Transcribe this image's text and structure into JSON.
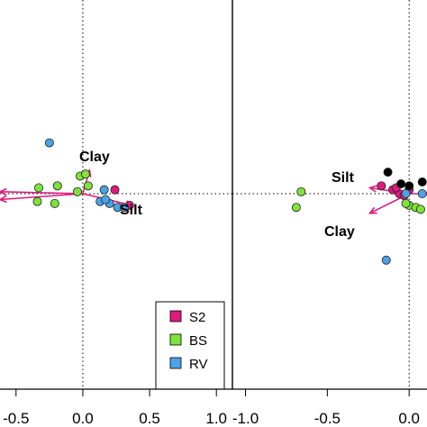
{
  "chart_data": [
    {
      "type": "scatter",
      "panel": "left",
      "title": "",
      "xlabel": "",
      "ylabel": "",
      "xlim": [
        -0.62,
        1.12
      ],
      "ylim": [
        -1.0,
        1.0
      ],
      "xticks": [
        -0.5,
        0.0,
        0.5,
        1.0
      ],
      "xtick_labels": [
        "-0.5",
        "0.0",
        "0.5",
        "1.0"
      ],
      "reference_lines": {
        "x": 0,
        "y": 0,
        "style": "dotted"
      },
      "series": [
        {
          "name": "S2",
          "color": "#e0197d",
          "points": [
            {
              "x": 0.24,
              "y": 0.02
            },
            {
              "x": 0.35,
              "y": -0.06
            }
          ]
        },
        {
          "name": "BS",
          "color": "#7ee23a",
          "points": [
            {
              "x": -0.33,
              "y": 0.03
            },
            {
              "x": -0.34,
              "y": -0.04
            },
            {
              "x": -0.21,
              "y": -0.05
            },
            {
              "x": -0.04,
              "y": 0.01
            },
            {
              "x": -0.02,
              "y": 0.09
            },
            {
              "x": 0.02,
              "y": 0.1
            },
            {
              "x": 0.04,
              "y": 0.04
            },
            {
              "x": -0.19,
              "y": 0.04
            }
          ]
        },
        {
          "name": "RV",
          "color": "#4aa3e8",
          "points": [
            {
              "x": -0.25,
              "y": 0.26
            },
            {
              "x": 0.16,
              "y": 0.02
            },
            {
              "x": 0.13,
              "y": -0.04
            },
            {
              "x": 0.2,
              "y": -0.05
            },
            {
              "x": 0.26,
              "y": -0.07
            },
            {
              "x": 0.31,
              "y": -0.07
            },
            {
              "x": 0.17,
              "y": -0.03
            }
          ]
        }
      ],
      "vectors": [
        {
          "label": "Clay",
          "x": 0.05,
          "y": 0.12
        },
        {
          "label": "Silt",
          "x": 0.37,
          "y": -0.06
        },
        {
          "label": "",
          "x": -0.62,
          "y": 0.01
        },
        {
          "label": "",
          "x": -0.62,
          "y": -0.03
        }
      ],
      "legend": {
        "placement": "bottom-right",
        "entries": [
          {
            "label": "S2",
            "color": "#e0197d"
          },
          {
            "label": "BS",
            "color": "#7ee23a"
          },
          {
            "label": "RV",
            "color": "#4aa3e8"
          }
        ]
      }
    },
    {
      "type": "scatter",
      "panel": "right",
      "title": "",
      "xlabel": "",
      "ylabel": "",
      "xlim": [
        -1.08,
        0.12
      ],
      "ylim": [
        -1.0,
        1.0
      ],
      "xticks": [
        -1.0,
        -0.5,
        0.0
      ],
      "xtick_labels": [
        "-1.0",
        "-0.5",
        "0.0"
      ],
      "reference_lines": {
        "x": 0,
        "y": 0,
        "style": "dotted"
      },
      "series": [
        {
          "name": "S2",
          "color": "#e0197d",
          "points": [
            {
              "x": -0.17,
              "y": 0.04
            },
            {
              "x": -0.1,
              "y": 0.02
            },
            {
              "x": -0.06,
              "y": 0.0
            },
            {
              "x": -0.03,
              "y": -0.01
            },
            {
              "x": 0.0,
              "y": 0.02
            },
            {
              "x": -0.08,
              "y": 0.03
            }
          ]
        },
        {
          "name": "BS",
          "color": "#7ee23a",
          "points": [
            {
              "x": -0.66,
              "y": 0.01
            },
            {
              "x": -0.69,
              "y": -0.07
            },
            {
              "x": 0.0,
              "y": -0.06
            },
            {
              "x": 0.04,
              "y": -0.07
            },
            {
              "x": -0.02,
              "y": -0.05
            },
            {
              "x": 0.07,
              "y": -0.08
            }
          ]
        },
        {
          "name": "RV",
          "color": "#4aa3e8",
          "points": [
            {
              "x": -0.14,
              "y": -0.34
            },
            {
              "x": -0.02,
              "y": 0.0
            },
            {
              "x": 0.08,
              "y": 0.0
            }
          ]
        },
        {
          "name": "",
          "color": "#000000",
          "points": [
            {
              "x": -0.13,
              "y": 0.11
            },
            {
              "x": -0.05,
              "y": 0.05
            },
            {
              "x": 0.08,
              "y": 0.06
            },
            {
              "x": 0.0,
              "y": 0.04
            }
          ]
        }
      ],
      "vectors": [
        {
          "label": "Silt",
          "x": -0.24,
          "y": 0.03
        },
        {
          "label": "Clay",
          "x": -0.24,
          "y": -0.1
        },
        {
          "label": "",
          "x": 0.12,
          "y": 0.0
        }
      ]
    }
  ]
}
